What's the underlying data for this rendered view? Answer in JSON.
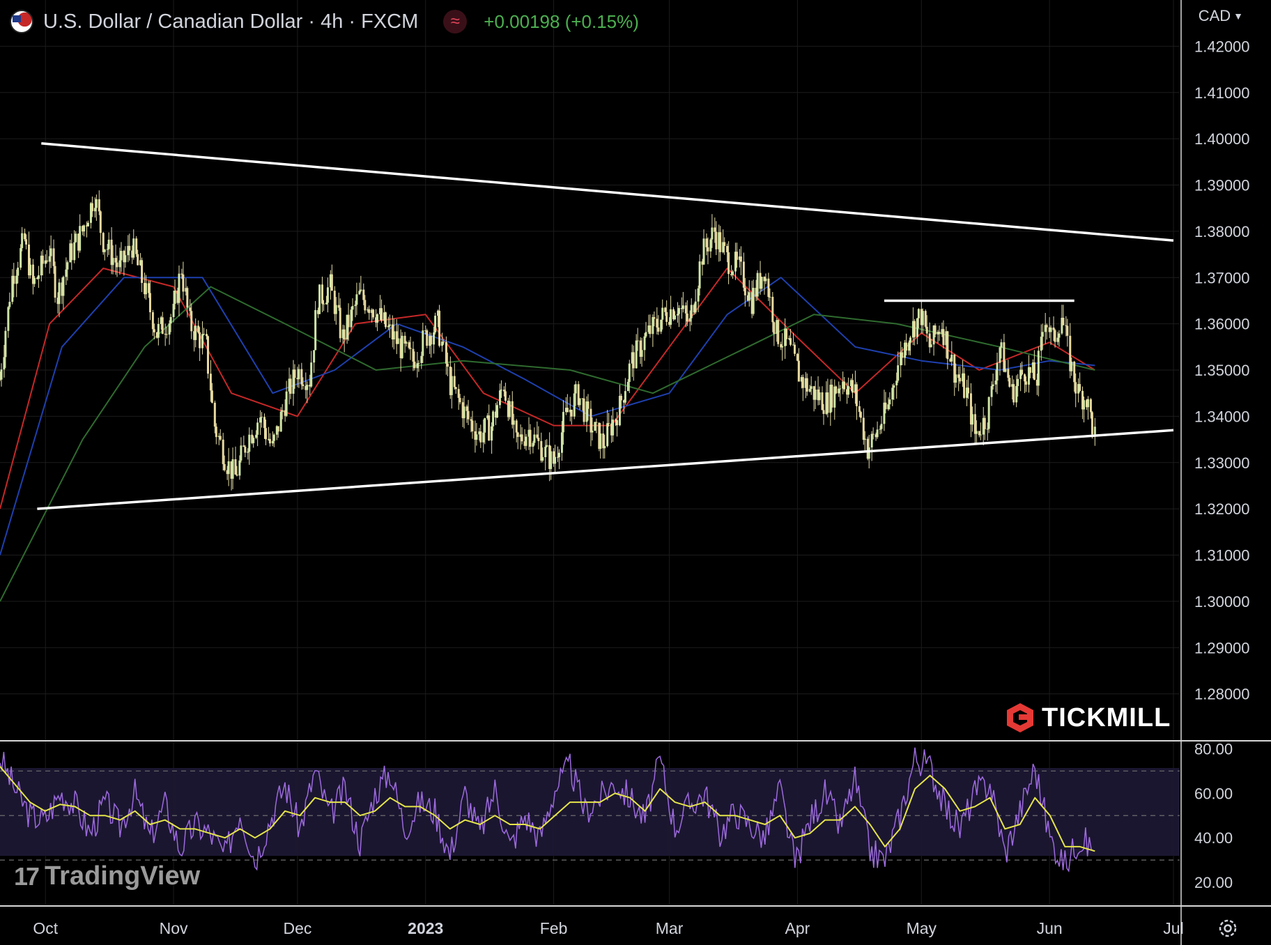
{
  "header": {
    "title": "U.S. Dollar / Canadian Dollar · 4h · FXCM",
    "indicator_glyph": "≈",
    "change": "+0.00198 (+0.15%)"
  },
  "currency_selector": {
    "label": "CAD"
  },
  "branding": {
    "broker": "TICKMILL",
    "platform": "TradingView"
  },
  "colors": {
    "background": "#000000",
    "candles": "#e6dfa8",
    "sma_red": "#c62828",
    "sma_blue": "#1e40af",
    "sma_green": "#2f6b2f",
    "trendline": "#ffffff",
    "rsi_line": "#9c6ade",
    "rsi_ma": "#e5e54a",
    "rsi_band": "#1b1630",
    "change_up": "#4caf50",
    "tickmill_red": "#e53935"
  },
  "icons": [
    "usd-cad-flag-icon",
    "indicator-icon",
    "chevron-down-icon",
    "tickmill-logo-icon",
    "tradingview-logo-icon",
    "settings-gear-icon"
  ],
  "chart_data": [
    {
      "type": "candlestick",
      "symbol": "USDCAD",
      "interval": "4h",
      "source": "FXCM",
      "ylim": [
        1.27,
        1.43
      ],
      "y_ticks": [
        "1.42000",
        "1.41000",
        "1.40000",
        "1.39000",
        "1.38000",
        "1.37000",
        "1.36000",
        "1.35000",
        "1.34000",
        "1.33000",
        "1.32000",
        "1.31000",
        "1.30000",
        "1.29000",
        "1.28000"
      ],
      "x_ticks": [
        "Oct",
        "Nov",
        "Dec",
        "2023",
        "Feb",
        "Mar",
        "Apr",
        "May",
        "Jun",
        "Jul"
      ],
      "x_tick_dates": [
        "2022-10-01",
        "2022-11-01",
        "2022-12-01",
        "2023-01-01",
        "2023-02-01",
        "2023-03-01",
        "2023-04-01",
        "2023-05-01",
        "2023-06-01",
        "2023-07-01"
      ],
      "close_path": [
        [
          "2022-09-20",
          1.348
        ],
        [
          "2022-09-23",
          1.37
        ],
        [
          "2022-09-26",
          1.378
        ],
        [
          "2022-09-28",
          1.368
        ],
        [
          "2022-10-02",
          1.376
        ],
        [
          "2022-10-04",
          1.366
        ],
        [
          "2022-10-07",
          1.375
        ],
        [
          "2022-10-10",
          1.38
        ],
        [
          "2022-10-13",
          1.388
        ],
        [
          "2022-10-15",
          1.378
        ],
        [
          "2022-10-19",
          1.372
        ],
        [
          "2022-10-22",
          1.377
        ],
        [
          "2022-10-25",
          1.368
        ],
        [
          "2022-10-28",
          1.358
        ],
        [
          "2022-11-01",
          1.362
        ],
        [
          "2022-11-03",
          1.372
        ],
        [
          "2022-11-05",
          1.36
        ],
        [
          "2022-11-09",
          1.355
        ],
        [
          "2022-11-11",
          1.338
        ],
        [
          "2022-11-14",
          1.33
        ],
        [
          "2022-11-16",
          1.327
        ],
        [
          "2022-11-19",
          1.335
        ],
        [
          "2022-11-22",
          1.34
        ],
        [
          "2022-11-25",
          1.333
        ],
        [
          "2022-11-28",
          1.343
        ],
        [
          "2022-12-01",
          1.35
        ],
        [
          "2022-12-04",
          1.348
        ],
        [
          "2022-12-06",
          1.365
        ],
        [
          "2022-12-09",
          1.368
        ],
        [
          "2022-12-12",
          1.357
        ],
        [
          "2022-12-16",
          1.366
        ],
        [
          "2022-12-19",
          1.364
        ],
        [
          "2022-12-22",
          1.36
        ],
        [
          "2022-12-26",
          1.355
        ],
        [
          "2022-12-29",
          1.352
        ],
        [
          "2023-01-01",
          1.357
        ],
        [
          "2023-01-04",
          1.36
        ],
        [
          "2023-01-07",
          1.347
        ],
        [
          "2023-01-11",
          1.34
        ],
        [
          "2023-01-14",
          1.336
        ],
        [
          "2023-01-17",
          1.338
        ],
        [
          "2023-01-20",
          1.347
        ],
        [
          "2023-01-23",
          1.334
        ],
        [
          "2023-01-26",
          1.337
        ],
        [
          "2023-01-30",
          1.332
        ],
        [
          "2023-02-01",
          1.33
        ],
        [
          "2023-02-04",
          1.34
        ],
        [
          "2023-02-07",
          1.345
        ],
        [
          "2023-02-10",
          1.338
        ],
        [
          "2023-02-13",
          1.334
        ],
        [
          "2023-02-17",
          1.342
        ],
        [
          "2023-02-20",
          1.352
        ],
        [
          "2023-02-24",
          1.358
        ],
        [
          "2023-02-28",
          1.362
        ],
        [
          "2023-03-03",
          1.364
        ],
        [
          "2023-03-06",
          1.36
        ],
        [
          "2023-03-09",
          1.375
        ],
        [
          "2023-03-12",
          1.38
        ],
        [
          "2023-03-15",
          1.374
        ],
        [
          "2023-03-18",
          1.372
        ],
        [
          "2023-03-21",
          1.365
        ],
        [
          "2023-03-24",
          1.372
        ],
        [
          "2023-03-27",
          1.358
        ],
        [
          "2023-03-30",
          1.355
        ],
        [
          "2023-04-02",
          1.348
        ],
        [
          "2023-04-05",
          1.345
        ],
        [
          "2023-04-08",
          1.343
        ],
        [
          "2023-04-12",
          1.348
        ],
        [
          "2023-04-15",
          1.345
        ],
        [
          "2023-04-18",
          1.333
        ],
        [
          "2023-04-20",
          1.336
        ],
        [
          "2023-04-23",
          1.342
        ],
        [
          "2023-04-25",
          1.35
        ],
        [
          "2023-04-28",
          1.358
        ],
        [
          "2023-05-01",
          1.362
        ],
        [
          "2023-05-03",
          1.355
        ],
        [
          "2023-05-06",
          1.36
        ],
        [
          "2023-05-09",
          1.35
        ],
        [
          "2023-05-12",
          1.345
        ],
        [
          "2023-05-14",
          1.336
        ],
        [
          "2023-05-17",
          1.34
        ],
        [
          "2023-05-20",
          1.355
        ],
        [
          "2023-05-23",
          1.345
        ],
        [
          "2023-05-26",
          1.35
        ],
        [
          "2023-05-29",
          1.348
        ],
        [
          "2023-05-31",
          1.362
        ],
        [
          "2023-06-02",
          1.356
        ],
        [
          "2023-06-04",
          1.362
        ],
        [
          "2023-06-06",
          1.352
        ],
        [
          "2023-06-08",
          1.345
        ],
        [
          "2023-06-10",
          1.344
        ],
        [
          "2023-06-12",
          1.336
        ]
      ],
      "overlays": [
        {
          "name": "",
          "color": "#c62828",
          "points": [
            [
              "2022-09-20",
              1.32
            ],
            [
              "2022-10-02",
              1.36
            ],
            [
              "2022-10-15",
              1.372
            ],
            [
              "2022-11-01",
              1.368
            ],
            [
              "2022-11-15",
              1.345
            ],
            [
              "2022-12-01",
              1.34
            ],
            [
              "2022-12-15",
              1.36
            ],
            [
              "2023-01-01",
              1.362
            ],
            [
              "2023-01-15",
              1.345
            ],
            [
              "2023-02-01",
              1.338
            ],
            [
              "2023-02-15",
              1.338
            ],
            [
              "2023-03-01",
              1.355
            ],
            [
              "2023-03-15",
              1.372
            ],
            [
              "2023-04-01",
              1.357
            ],
            [
              "2023-04-15",
              1.345
            ],
            [
              "2023-05-01",
              1.358
            ],
            [
              "2023-05-15",
              1.35
            ],
            [
              "2023-06-01",
              1.356
            ],
            [
              "2023-06-12",
              1.35
            ]
          ]
        },
        {
          "name": "",
          "color": "#1e40af",
          "points": [
            [
              "2022-09-20",
              1.31
            ],
            [
              "2022-10-05",
              1.355
            ],
            [
              "2022-10-20",
              1.37
            ],
            [
              "2022-11-08",
              1.37
            ],
            [
              "2022-11-25",
              1.345
            ],
            [
              "2022-12-10",
              1.35
            ],
            [
              "2022-12-25",
              1.36
            ],
            [
              "2023-01-10",
              1.355
            ],
            [
              "2023-01-25",
              1.348
            ],
            [
              "2023-02-10",
              1.34
            ],
            [
              "2023-03-01",
              1.345
            ],
            [
              "2023-03-15",
              1.362
            ],
            [
              "2023-03-28",
              1.37
            ],
            [
              "2023-04-15",
              1.355
            ],
            [
              "2023-05-01",
              1.352
            ],
            [
              "2023-05-20",
              1.35
            ],
            [
              "2023-06-01",
              1.352
            ],
            [
              "2023-06-12",
              1.351
            ]
          ]
        },
        {
          "name": "",
          "color": "#2f6b2f",
          "points": [
            [
              "2022-09-20",
              1.3
            ],
            [
              "2022-10-10",
              1.335
            ],
            [
              "2022-10-25",
              1.355
            ],
            [
              "2022-11-10",
              1.368
            ],
            [
              "2022-11-28",
              1.36
            ],
            [
              "2022-12-20",
              1.35
            ],
            [
              "2023-01-10",
              1.352
            ],
            [
              "2023-02-05",
              1.35
            ],
            [
              "2023-02-25",
              1.345
            ],
            [
              "2023-03-20",
              1.355
            ],
            [
              "2023-04-05",
              1.362
            ],
            [
              "2023-04-25",
              1.36
            ],
            [
              "2023-05-20",
              1.355
            ],
            [
              "2023-06-12",
              1.35
            ]
          ]
        }
      ],
      "trendlines": [
        {
          "from": [
            "2022-09-30",
            1.399
          ],
          "to": [
            "2023-07-01",
            1.378
          ]
        },
        {
          "from": [
            "2022-09-29",
            1.32
          ],
          "to": [
            "2023-07-01",
            1.337
          ]
        },
        {
          "from": [
            "2023-04-22",
            1.365
          ],
          "to": [
            "2023-06-07",
            1.365
          ]
        }
      ]
    },
    {
      "type": "line",
      "name": "RSI",
      "ylim": [
        10,
        82
      ],
      "y_ticks": [
        "80.00",
        "60.00",
        "40.00",
        "20.00"
      ],
      "bands": [
        30,
        50,
        70
      ],
      "values": [
        76,
        62,
        50,
        48,
        60,
        55,
        42,
        56,
        45,
        60,
        40,
        55,
        35,
        46,
        42,
        32,
        52,
        30,
        48,
        64,
        44,
        70,
        50,
        62,
        38,
        60,
        70,
        44,
        56,
        52,
        32,
        60,
        42,
        62,
        36,
        50,
        40,
        62,
        72,
        52,
        58,
        65,
        58,
        48,
        75,
        45,
        55,
        60,
        42,
        52,
        46,
        40,
        62,
        28,
        48,
        60,
        45,
        66,
        34,
        30,
        50,
        76,
        72,
        54,
        44,
        60,
        65,
        33,
        52,
        72,
        40,
        28,
        40,
        34
      ],
      "ma_values": [
        72,
        64,
        56,
        52,
        55,
        54,
        50,
        50,
        48,
        52,
        46,
        48,
        44,
        44,
        42,
        40,
        44,
        40,
        44,
        52,
        50,
        58,
        56,
        56,
        50,
        52,
        58,
        54,
        54,
        50,
        44,
        48,
        46,
        50,
        46,
        46,
        44,
        50,
        56,
        56,
        56,
        60,
        58,
        52,
        62,
        56,
        54,
        56,
        50,
        50,
        48,
        46,
        50,
        40,
        42,
        48,
        48,
        54,
        46,
        36,
        44,
        62,
        68,
        62,
        52,
        54,
        58,
        44,
        46,
        58,
        50,
        36,
        36,
        34
      ]
    }
  ]
}
